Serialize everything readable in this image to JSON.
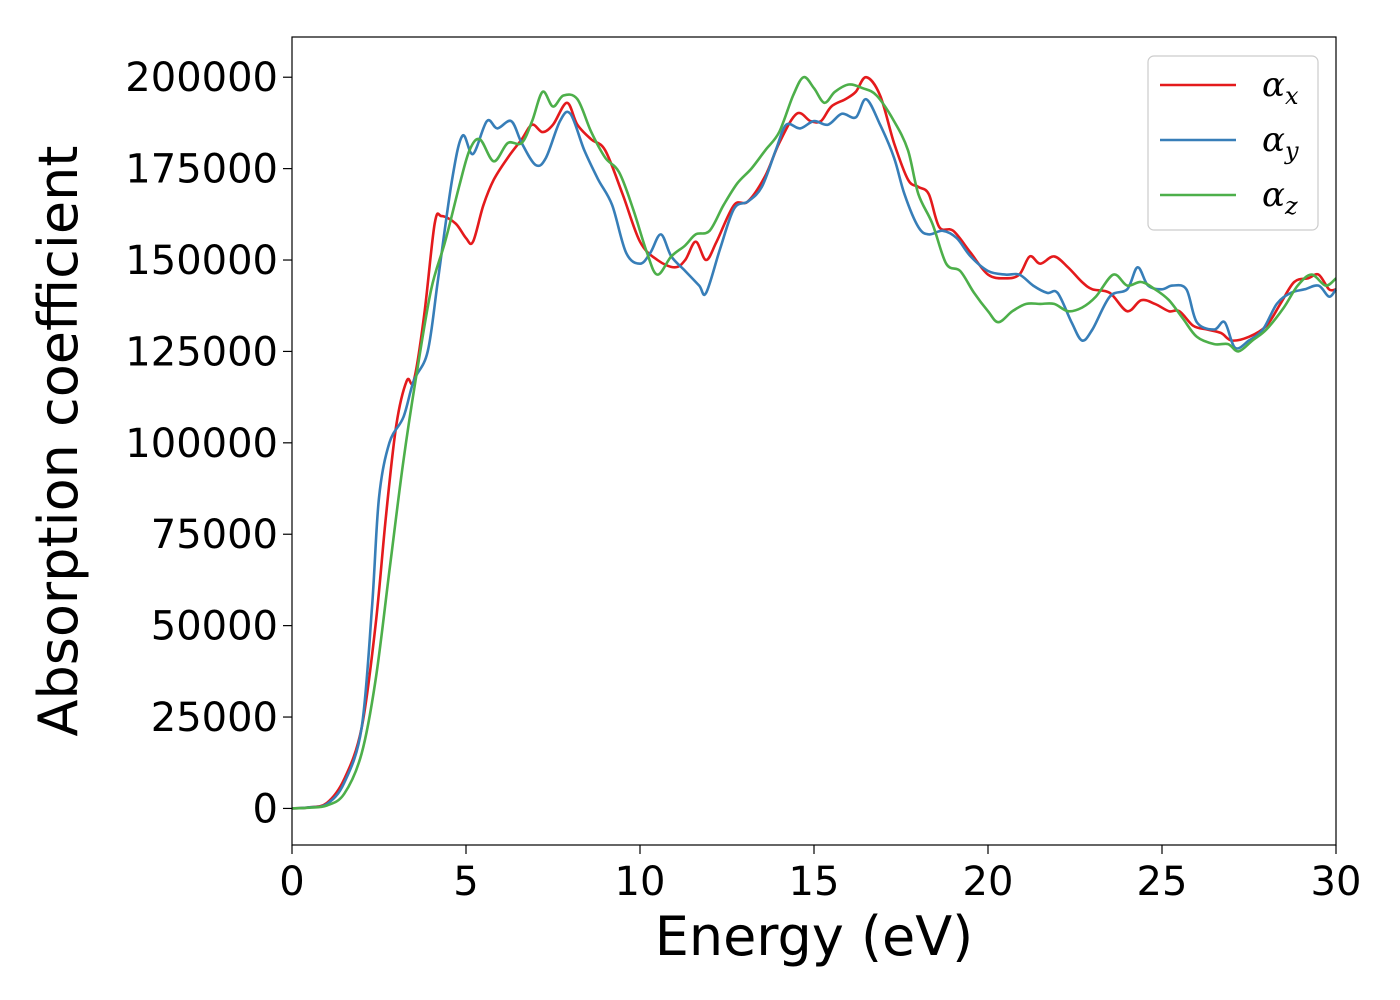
{
  "chart_data": {
    "type": "line",
    "xlabel": "Energy (eV)",
    "ylabel": "Absorption coefficient",
    "xlim": [
      0,
      30
    ],
    "ylim": [
      -10000,
      211000
    ],
    "xticks": [
      "0",
      "5",
      "10",
      "15",
      "20",
      "25",
      "30"
    ],
    "yticks": [
      "0",
      "25000",
      "50000",
      "75000",
      "100000",
      "125000",
      "150000",
      "175000",
      "200000"
    ],
    "grid": false,
    "legend_position": "top-right",
    "series": [
      {
        "name": "α",
        "subscript": "x",
        "color": "#e41a1c",
        "points": [
          [
            0,
            0
          ],
          [
            0.5,
            300
          ],
          [
            1,
            1500
          ],
          [
            1.5,
            8000
          ],
          [
            2,
            22000
          ],
          [
            2.4,
            50000
          ],
          [
            2.7,
            80000
          ],
          [
            3,
            105000
          ],
          [
            3.3,
            117000
          ],
          [
            3.5,
            117000
          ],
          [
            3.8,
            135000
          ],
          [
            4.1,
            160000
          ],
          [
            4.3,
            162000
          ],
          [
            4.7,
            160000
          ],
          [
            5,
            156000
          ],
          [
            5.2,
            155000
          ],
          [
            5.5,
            165000
          ],
          [
            5.8,
            172000
          ],
          [
            6.2,
            178000
          ],
          [
            6.6,
            183000
          ],
          [
            6.9,
            187000
          ],
          [
            7.2,
            185000
          ],
          [
            7.5,
            187000
          ],
          [
            7.9,
            193000
          ],
          [
            8.2,
            187000
          ],
          [
            8.6,
            183000
          ],
          [
            9,
            180000
          ],
          [
            9.5,
            168000
          ],
          [
            10,
            155000
          ],
          [
            10.5,
            150000
          ],
          [
            11,
            148000
          ],
          [
            11.3,
            150000
          ],
          [
            11.6,
            155000
          ],
          [
            11.9,
            150000
          ],
          [
            12.2,
            155000
          ],
          [
            12.7,
            165000
          ],
          [
            13.1,
            166000
          ],
          [
            13.6,
            173000
          ],
          [
            14,
            182000
          ],
          [
            14.5,
            190000
          ],
          [
            14.9,
            188000
          ],
          [
            15.2,
            188000
          ],
          [
            15.5,
            192000
          ],
          [
            15.9,
            194000
          ],
          [
            16.2,
            196000
          ],
          [
            16.5,
            200000
          ],
          [
            16.9,
            195000
          ],
          [
            17.3,
            182000
          ],
          [
            17.7,
            172000
          ],
          [
            18,
            170000
          ],
          [
            18.3,
            168000
          ],
          [
            18.6,
            159000
          ],
          [
            19,
            158000
          ],
          [
            19.5,
            152000
          ],
          [
            20,
            146000
          ],
          [
            20.5,
            145000
          ],
          [
            20.9,
            146000
          ],
          [
            21.2,
            151000
          ],
          [
            21.5,
            149000
          ],
          [
            21.9,
            151000
          ],
          [
            22.3,
            148000
          ],
          [
            22.7,
            144000
          ],
          [
            23,
            142000
          ],
          [
            23.5,
            141000
          ],
          [
            24,
            136000
          ],
          [
            24.4,
            139000
          ],
          [
            24.8,
            138000
          ],
          [
            25.2,
            136000
          ],
          [
            25.5,
            136000
          ],
          [
            25.9,
            132000
          ],
          [
            26.3,
            131000
          ],
          [
            26.7,
            130000
          ],
          [
            27,
            128000
          ],
          [
            27.5,
            129000
          ],
          [
            28,
            132000
          ],
          [
            28.4,
            138000
          ],
          [
            28.8,
            144000
          ],
          [
            29.2,
            145000
          ],
          [
            29.5,
            146000
          ],
          [
            29.8,
            142000
          ],
          [
            30,
            142000
          ]
        ]
      },
      {
        "name": "α",
        "subscript": "y",
        "color": "#377eb8",
        "points": [
          [
            0,
            0
          ],
          [
            0.5,
            300
          ],
          [
            1,
            1200
          ],
          [
            1.5,
            7000
          ],
          [
            2,
            22000
          ],
          [
            2.3,
            55000
          ],
          [
            2.5,
            85000
          ],
          [
            2.8,
            100000
          ],
          [
            3.2,
            107000
          ],
          [
            3.5,
            117000
          ],
          [
            3.9,
            125000
          ],
          [
            4.2,
            145000
          ],
          [
            4.6,
            172000
          ],
          [
            4.9,
            184000
          ],
          [
            5.2,
            179000
          ],
          [
            5.6,
            188000
          ],
          [
            5.9,
            186000
          ],
          [
            6.3,
            188000
          ],
          [
            6.6,
            182000
          ],
          [
            7,
            176000
          ],
          [
            7.3,
            178000
          ],
          [
            7.7,
            188000
          ],
          [
            8,
            190000
          ],
          [
            8.4,
            180000
          ],
          [
            8.8,
            172000
          ],
          [
            9.2,
            165000
          ],
          [
            9.6,
            152000
          ],
          [
            10,
            149000
          ],
          [
            10.3,
            152000
          ],
          [
            10.6,
            157000
          ],
          [
            10.9,
            151000
          ],
          [
            11.3,
            147000
          ],
          [
            11.7,
            143000
          ],
          [
            11.9,
            141000
          ],
          [
            12.3,
            153000
          ],
          [
            12.7,
            164000
          ],
          [
            13.1,
            166000
          ],
          [
            13.5,
            170000
          ],
          [
            13.9,
            180000
          ],
          [
            14.2,
            187000
          ],
          [
            14.6,
            186000
          ],
          [
            15,
            188000
          ],
          [
            15.4,
            187000
          ],
          [
            15.8,
            190000
          ],
          [
            16.2,
            189000
          ],
          [
            16.5,
            194000
          ],
          [
            16.9,
            187000
          ],
          [
            17.3,
            178000
          ],
          [
            17.6,
            168000
          ],
          [
            18,
            159000
          ],
          [
            18.3,
            157000
          ],
          [
            18.7,
            158000
          ],
          [
            19.1,
            156000
          ],
          [
            19.5,
            151000
          ],
          [
            20,
            147000
          ],
          [
            20.5,
            146000
          ],
          [
            20.9,
            146000
          ],
          [
            21.3,
            143000
          ],
          [
            21.7,
            141000
          ],
          [
            22,
            141000
          ],
          [
            22.4,
            133000
          ],
          [
            22.7,
            128000
          ],
          [
            23,
            131000
          ],
          [
            23.5,
            140000
          ],
          [
            24,
            142000
          ],
          [
            24.3,
            148000
          ],
          [
            24.6,
            143000
          ],
          [
            25,
            142000
          ],
          [
            25.3,
            143000
          ],
          [
            25.7,
            142000
          ],
          [
            26,
            133000
          ],
          [
            26.5,
            131000
          ],
          [
            26.8,
            133000
          ],
          [
            27.1,
            126000
          ],
          [
            27.5,
            128000
          ],
          [
            27.9,
            131000
          ],
          [
            28.3,
            138000
          ],
          [
            28.7,
            141000
          ],
          [
            29.1,
            142000
          ],
          [
            29.5,
            143000
          ],
          [
            29.8,
            140000
          ],
          [
            30,
            142000
          ]
        ]
      },
      {
        "name": "α",
        "subscript": "z",
        "color": "#4daf4a",
        "points": [
          [
            0,
            0
          ],
          [
            0.5,
            200
          ],
          [
            1,
            800
          ],
          [
            1.5,
            4000
          ],
          [
            2,
            15000
          ],
          [
            2.4,
            35000
          ],
          [
            2.8,
            65000
          ],
          [
            3.2,
            95000
          ],
          [
            3.6,
            120000
          ],
          [
            4,
            142000
          ],
          [
            4.4,
            155000
          ],
          [
            4.8,
            170000
          ],
          [
            5.1,
            180000
          ],
          [
            5.4,
            183000
          ],
          [
            5.8,
            177000
          ],
          [
            6.2,
            182000
          ],
          [
            6.6,
            182000
          ],
          [
            6.9,
            188000
          ],
          [
            7.2,
            196000
          ],
          [
            7.5,
            192000
          ],
          [
            7.8,
            195000
          ],
          [
            8.2,
            194000
          ],
          [
            8.6,
            185000
          ],
          [
            9,
            178000
          ],
          [
            9.4,
            174000
          ],
          [
            9.8,
            164000
          ],
          [
            10.2,
            152000
          ],
          [
            10.5,
            146000
          ],
          [
            10.9,
            151000
          ],
          [
            11.3,
            154000
          ],
          [
            11.6,
            157000
          ],
          [
            12,
            158000
          ],
          [
            12.4,
            165000
          ],
          [
            12.8,
            171000
          ],
          [
            13.2,
            175000
          ],
          [
            13.6,
            180000
          ],
          [
            14,
            185000
          ],
          [
            14.4,
            195000
          ],
          [
            14.7,
            200000
          ],
          [
            15,
            197000
          ],
          [
            15.3,
            193000
          ],
          [
            15.6,
            196000
          ],
          [
            16,
            198000
          ],
          [
            16.4,
            197000
          ],
          [
            16.8,
            195000
          ],
          [
            17.3,
            188000
          ],
          [
            17.7,
            180000
          ],
          [
            18,
            168000
          ],
          [
            18.4,
            160000
          ],
          [
            18.8,
            149000
          ],
          [
            19.2,
            147000
          ],
          [
            19.6,
            141000
          ],
          [
            20,
            136000
          ],
          [
            20.3,
            133000
          ],
          [
            20.7,
            136000
          ],
          [
            21.1,
            138000
          ],
          [
            21.5,
            138000
          ],
          [
            21.9,
            138000
          ],
          [
            22.3,
            136000
          ],
          [
            22.7,
            137000
          ],
          [
            23.1,
            140000
          ],
          [
            23.6,
            146000
          ],
          [
            24,
            143000
          ],
          [
            24.4,
            144000
          ],
          [
            24.8,
            142000
          ],
          [
            25.2,
            139000
          ],
          [
            25.6,
            134000
          ],
          [
            26,
            129000
          ],
          [
            26.5,
            127000
          ],
          [
            26.9,
            127000
          ],
          [
            27.2,
            125000
          ],
          [
            27.6,
            128000
          ],
          [
            28,
            131000
          ],
          [
            28.5,
            137000
          ],
          [
            28.9,
            143000
          ],
          [
            29.3,
            146000
          ],
          [
            29.7,
            143000
          ],
          [
            30,
            145000
          ]
        ]
      }
    ]
  }
}
